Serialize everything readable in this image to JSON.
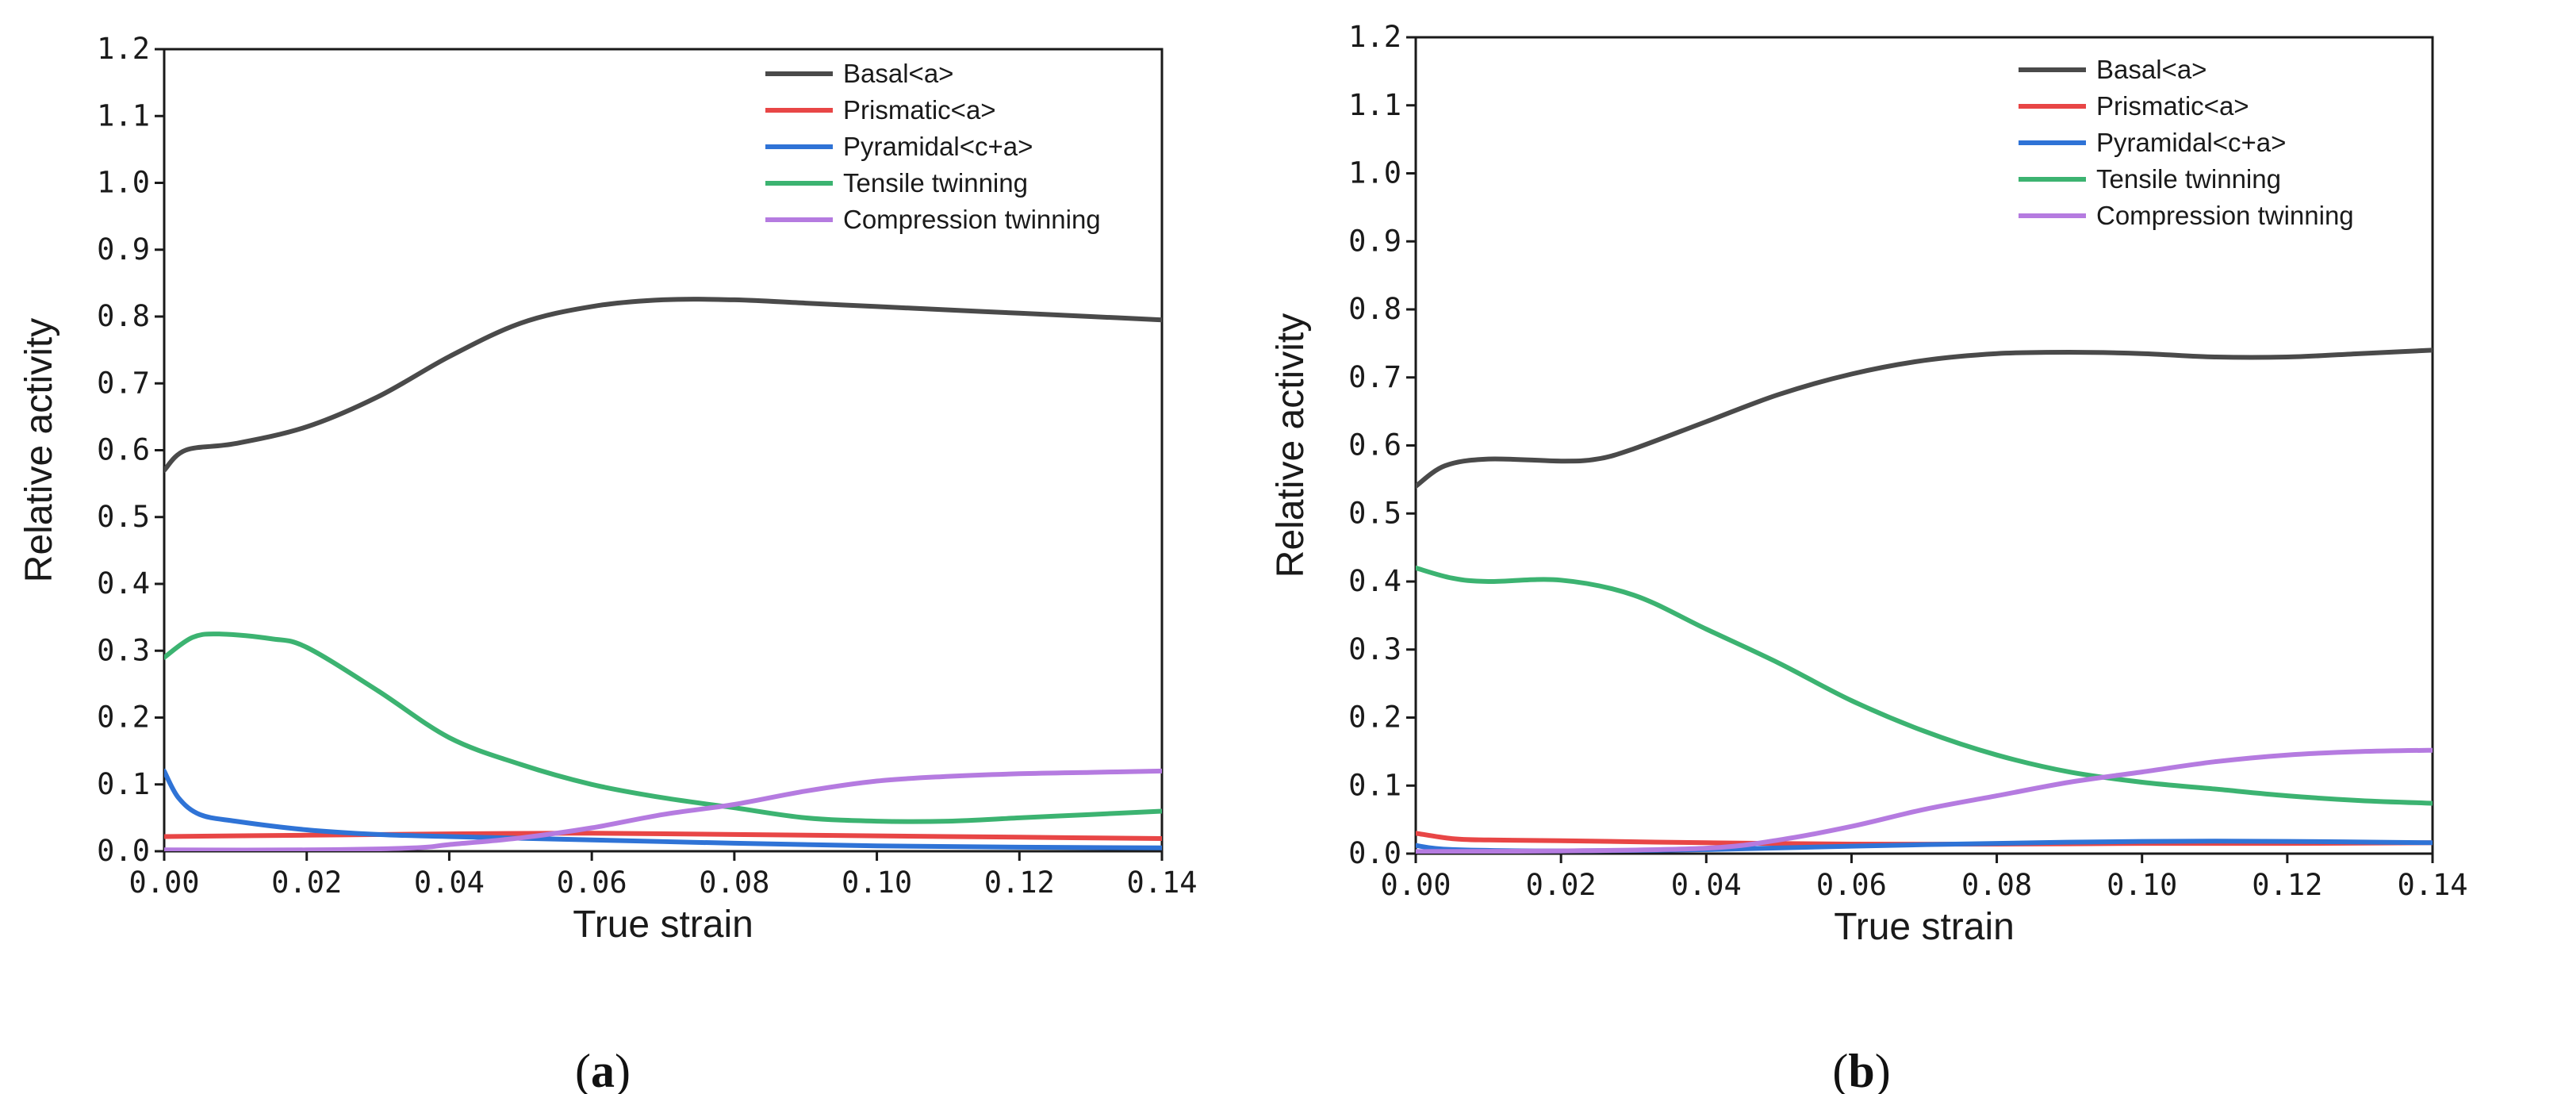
{
  "figure": {
    "panel_labels": [
      {
        "open": "(",
        "letter": "a",
        "close": ")"
      },
      {
        "open": "(",
        "letter": "b",
        "close": ")"
      }
    ]
  },
  "chart_data": [
    {
      "type": "line",
      "panel": "a",
      "xlabel": "True strain",
      "ylabel": "Relative activity",
      "xlim": [
        0,
        0.14
      ],
      "ylim": [
        0,
        1.2
      ],
      "xticks": [
        0,
        0.02,
        0.04,
        0.06,
        0.08,
        0.1,
        0.12,
        0.14
      ],
      "xtick_labels": [
        "0.00",
        "0.02",
        "0.04",
        "0.06",
        "0.08",
        "0.10",
        "0.12",
        "0.14"
      ],
      "yticks": [
        0,
        0.1,
        0.2,
        0.3,
        0.4,
        0.5,
        0.6,
        0.7,
        0.8,
        0.9,
        1.0,
        1.1,
        1.2
      ],
      "ytick_labels": [
        "0.0",
        "0.1",
        "0.2",
        "0.3",
        "0.4",
        "0.5",
        "0.6",
        "0.7",
        "0.8",
        "0.9",
        "1.0",
        "1.1",
        "1.2"
      ],
      "legend_position": "top-right",
      "series": [
        {
          "name": "Basal<a>",
          "color": "#4a4a4a",
          "x": [
            0,
            0.003,
            0.01,
            0.02,
            0.03,
            0.04,
            0.05,
            0.06,
            0.07,
            0.08,
            0.09,
            0.1,
            0.11,
            0.12,
            0.13,
            0.14
          ],
          "y": [
            0.57,
            0.6,
            0.61,
            0.635,
            0.68,
            0.74,
            0.79,
            0.815,
            0.825,
            0.825,
            0.82,
            0.815,
            0.81,
            0.805,
            0.8,
            0.795
          ]
        },
        {
          "name": "Prismatic<a>",
          "color": "#e84646",
          "x": [
            0,
            0.02,
            0.04,
            0.06,
            0.08,
            0.1,
            0.12,
            0.14
          ],
          "y": [
            0.022,
            0.024,
            0.026,
            0.027,
            0.025,
            0.023,
            0.021,
            0.019
          ]
        },
        {
          "name": "Pyramidal<c+a>",
          "color": "#2f73d6",
          "x": [
            0,
            0.002,
            0.005,
            0.01,
            0.02,
            0.03,
            0.04,
            0.06,
            0.08,
            0.1,
            0.12,
            0.14
          ],
          "y": [
            0.12,
            0.08,
            0.055,
            0.045,
            0.032,
            0.025,
            0.022,
            0.017,
            0.012,
            0.008,
            0.006,
            0.005
          ]
        },
        {
          "name": "Tensile twinning",
          "color": "#3cb371",
          "x": [
            0,
            0.004,
            0.008,
            0.015,
            0.02,
            0.03,
            0.04,
            0.05,
            0.06,
            0.07,
            0.08,
            0.09,
            0.1,
            0.11,
            0.12,
            0.13,
            0.14
          ],
          "y": [
            0.29,
            0.32,
            0.325,
            0.318,
            0.305,
            0.24,
            0.17,
            0.13,
            0.1,
            0.08,
            0.065,
            0.05,
            0.045,
            0.045,
            0.05,
            0.055,
            0.06
          ]
        },
        {
          "name": "Compression twinning",
          "color": "#b57be0",
          "x": [
            0,
            0.02,
            0.035,
            0.04,
            0.05,
            0.06,
            0.07,
            0.08,
            0.09,
            0.1,
            0.11,
            0.12,
            0.13,
            0.14
          ],
          "y": [
            0.002,
            0.002,
            0.005,
            0.01,
            0.02,
            0.035,
            0.055,
            0.07,
            0.09,
            0.105,
            0.112,
            0.116,
            0.118,
            0.12
          ]
        }
      ]
    },
    {
      "type": "line",
      "panel": "b",
      "xlabel": "True strain",
      "ylabel": "Relative activity",
      "xlim": [
        0,
        0.14
      ],
      "ylim": [
        0,
        1.2
      ],
      "xticks": [
        0,
        0.02,
        0.04,
        0.06,
        0.08,
        0.1,
        0.12,
        0.14
      ],
      "xtick_labels": [
        "0.00",
        "0.02",
        "0.04",
        "0.06",
        "0.08",
        "0.10",
        "0.12",
        "0.14"
      ],
      "yticks": [
        0,
        0.1,
        0.2,
        0.3,
        0.4,
        0.5,
        0.6,
        0.7,
        0.8,
        0.9,
        1.0,
        1.1,
        1.2
      ],
      "ytick_labels": [
        "0.0",
        "0.1",
        "0.2",
        "0.3",
        "0.4",
        "0.5",
        "0.6",
        "0.7",
        "0.8",
        "0.9",
        "1.0",
        "1.1",
        "1.2"
      ],
      "legend_position": "top-right",
      "series": [
        {
          "name": "Basal<a>",
          "color": "#4a4a4a",
          "x": [
            0,
            0.004,
            0.01,
            0.02,
            0.025,
            0.03,
            0.04,
            0.05,
            0.06,
            0.07,
            0.08,
            0.09,
            0.1,
            0.11,
            0.12,
            0.13,
            0.14
          ],
          "y": [
            0.54,
            0.57,
            0.58,
            0.577,
            0.58,
            0.595,
            0.635,
            0.675,
            0.705,
            0.725,
            0.735,
            0.737,
            0.735,
            0.73,
            0.73,
            0.735,
            0.74
          ]
        },
        {
          "name": "Prismatic<a>",
          "color": "#e84646",
          "x": [
            0,
            0.005,
            0.01,
            0.02,
            0.04,
            0.06,
            0.08,
            0.1,
            0.12,
            0.14
          ],
          "y": [
            0.03,
            0.022,
            0.02,
            0.019,
            0.016,
            0.014,
            0.014,
            0.015,
            0.015,
            0.016
          ]
        },
        {
          "name": "Pyramidal<c+a>",
          "color": "#2f73d6",
          "x": [
            0,
            0.005,
            0.02,
            0.04,
            0.06,
            0.08,
            0.1,
            0.12,
            0.14
          ],
          "y": [
            0.012,
            0.006,
            0.004,
            0.006,
            0.011,
            0.015,
            0.018,
            0.018,
            0.016
          ]
        },
        {
          "name": "Tensile twinning",
          "color": "#3cb371",
          "x": [
            0,
            0.005,
            0.01,
            0.02,
            0.03,
            0.04,
            0.05,
            0.06,
            0.07,
            0.08,
            0.09,
            0.1,
            0.11,
            0.12,
            0.13,
            0.14
          ],
          "y": [
            0.42,
            0.405,
            0.4,
            0.402,
            0.38,
            0.33,
            0.28,
            0.225,
            0.18,
            0.145,
            0.12,
            0.105,
            0.095,
            0.085,
            0.078,
            0.074
          ]
        },
        {
          "name": "Compression twinning",
          "color": "#b57be0",
          "x": [
            0,
            0.02,
            0.04,
            0.05,
            0.06,
            0.07,
            0.08,
            0.09,
            0.1,
            0.11,
            0.12,
            0.13,
            0.14
          ],
          "y": [
            0.003,
            0.004,
            0.008,
            0.02,
            0.04,
            0.065,
            0.085,
            0.105,
            0.12,
            0.135,
            0.145,
            0.15,
            0.152
          ]
        }
      ]
    }
  ]
}
